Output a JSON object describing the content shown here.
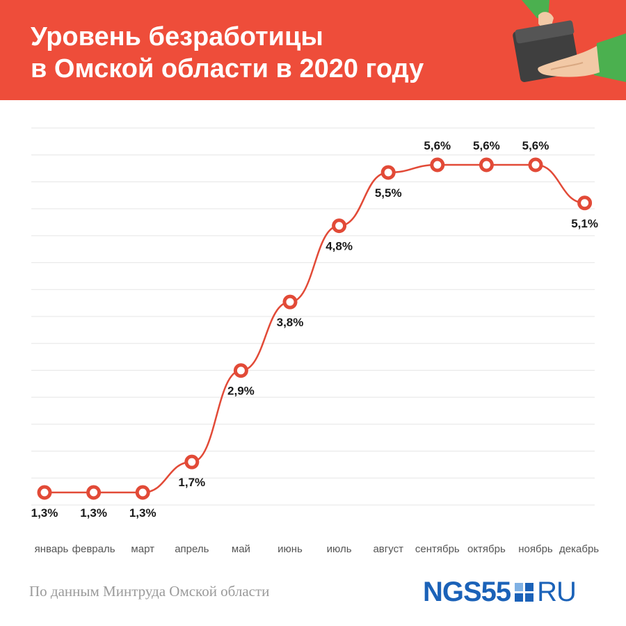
{
  "header": {
    "title_line1": "Уровень безработицы",
    "title_line2": "в Омской области в 2020 году",
    "background_color": "#ee4d3a",
    "illustration_icon": "hands-wallet-icon"
  },
  "chart_data": {
    "type": "line",
    "title": "Уровень безработицы в Омской области в 2020 году",
    "categories": [
      "январь",
      "февраль",
      "март",
      "апрель",
      "май",
      "июнь",
      "июль",
      "август",
      "сентябрь",
      "октябрь",
      "ноябрь",
      "декабрь"
    ],
    "series": [
      {
        "values": [
          1.3,
          1.3,
          1.3,
          1.7,
          2.9,
          3.8,
          4.8,
          5.5,
          5.6,
          5.6,
          5.6,
          5.1
        ],
        "labels": [
          "1,3%",
          "1,3%",
          "1,3%",
          "1,7%",
          "2,9%",
          "3,8%",
          "4,8%",
          "5,5%",
          "5,6%",
          "5,6%",
          "5,6%",
          "5,1%"
        ],
        "label_side": [
          "below",
          "below",
          "below",
          "below",
          "below",
          "below",
          "below",
          "below",
          "above",
          "above",
          "above",
          "below"
        ],
        "color": "#e24a37"
      }
    ],
    "ylim": [
      0.2,
      7.0
    ],
    "grid": true,
    "grid_color": "#e5e5e5"
  },
  "footer": {
    "source": "По данным Минтруда Омской области",
    "logo_ngs": "NGS55",
    "logo_ru": "RU",
    "logo_color": "#1b62b8"
  }
}
